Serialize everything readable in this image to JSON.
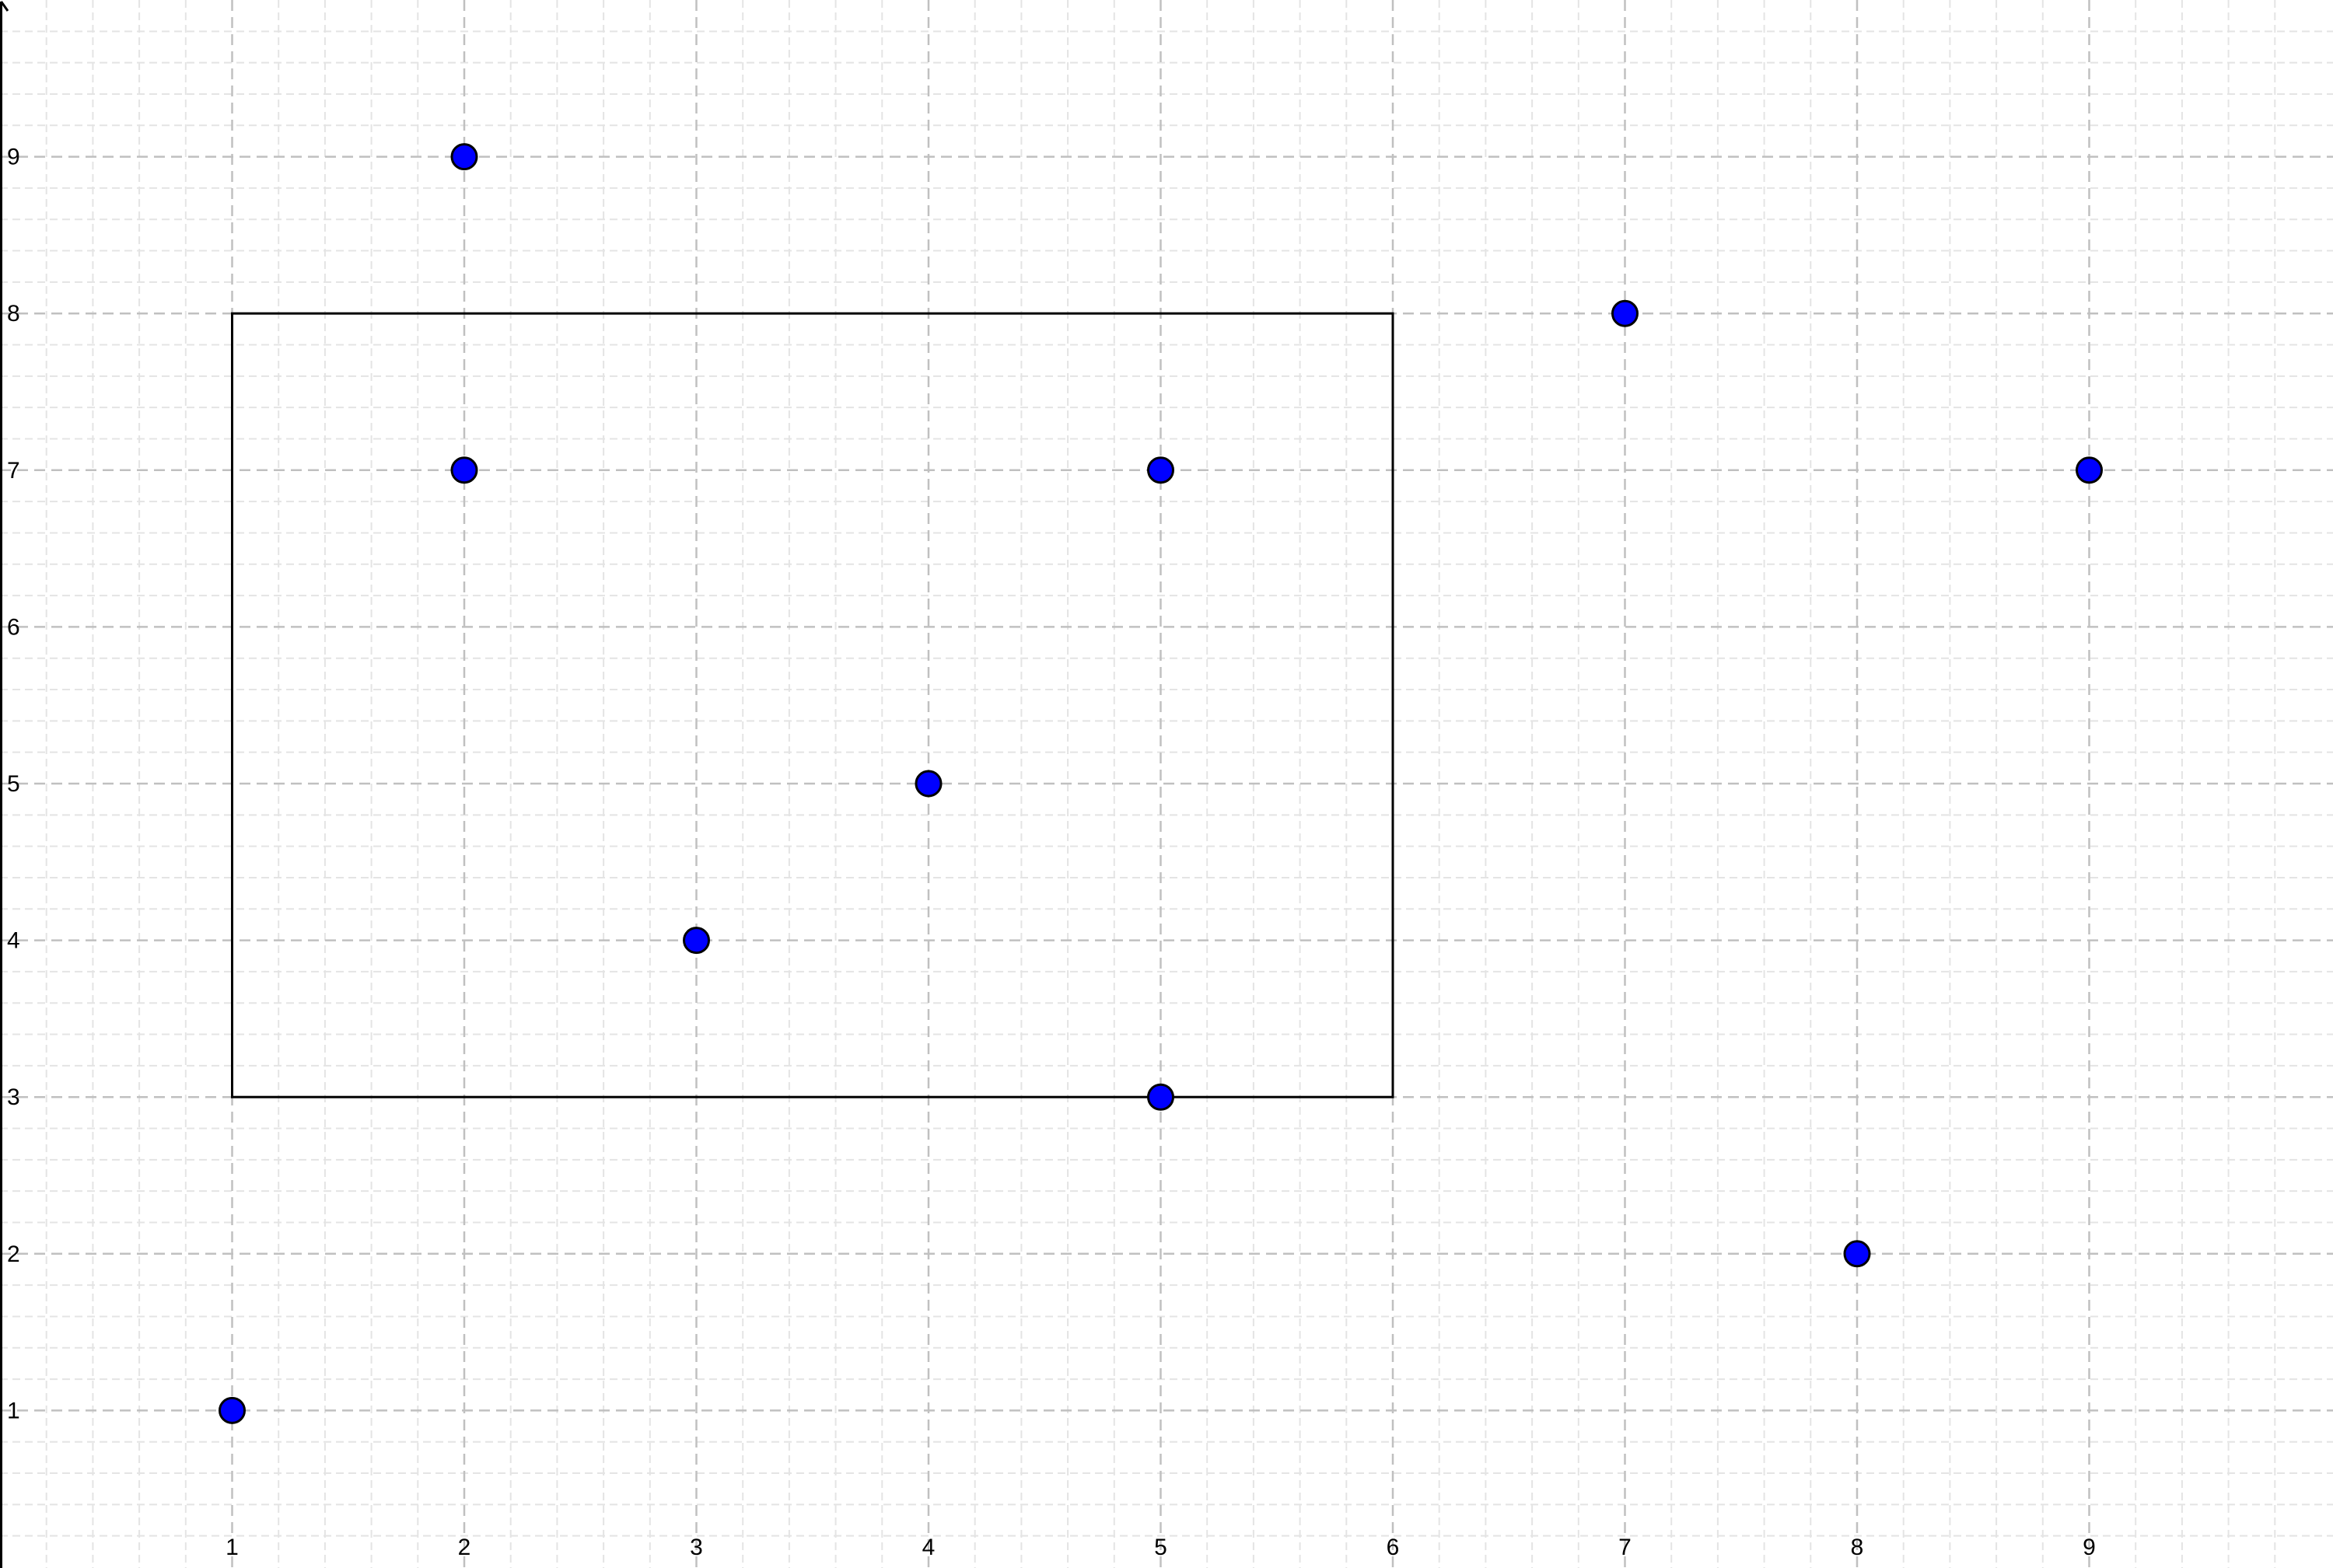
{
  "chart_data": {
    "type": "scatter",
    "title": "",
    "xlabel": "",
    "ylabel": "",
    "xlim": [
      0,
      10
    ],
    "ylim": [
      0,
      10
    ],
    "x_ticks": [
      "1",
      "2",
      "3",
      "4",
      "5",
      "6",
      "7",
      "8",
      "9"
    ],
    "y_ticks": [
      "1",
      "2",
      "3",
      "4",
      "5",
      "6",
      "7",
      "8",
      "9"
    ],
    "grid": true,
    "minor_grid": true,
    "points": [
      {
        "x": 1,
        "y": 1
      },
      {
        "x": 2,
        "y": 9
      },
      {
        "x": 2,
        "y": 7
      },
      {
        "x": 3,
        "y": 4
      },
      {
        "x": 4,
        "y": 5
      },
      {
        "x": 5,
        "y": 7
      },
      {
        "x": 5,
        "y": 3
      },
      {
        "x": 7,
        "y": 8
      },
      {
        "x": 8,
        "y": 2
      },
      {
        "x": 9,
        "y": 7
      }
    ],
    "rectangle": {
      "x_min": 1,
      "x_max": 6,
      "y_min": 3,
      "y_max": 8
    },
    "colors": {
      "point_fill": "#0000ff",
      "point_stroke": "#000000",
      "rectangle_stroke": "#000000",
      "major_grid": "#c0c0c0",
      "minor_grid": "#e4e4e4",
      "axis": "#000000"
    }
  }
}
